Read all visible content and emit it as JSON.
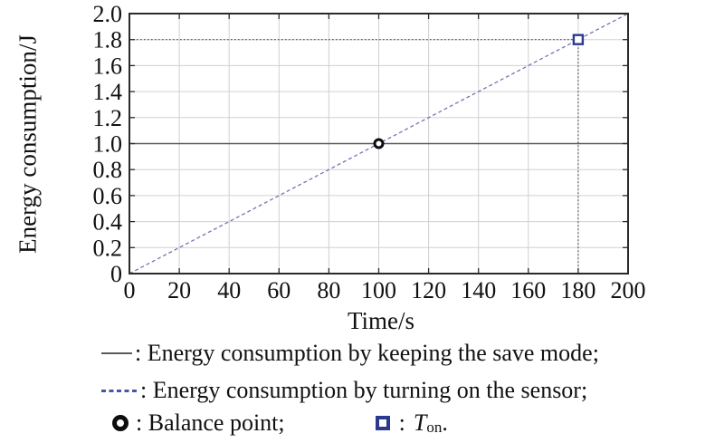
{
  "chart_data": {
    "type": "line",
    "title": "",
    "xlabel": "Time/s",
    "ylabel": "Energy consumption/J",
    "xlim": [
      0,
      200
    ],
    "ylim": [
      0,
      2.0
    ],
    "xticks": [
      "0",
      "20",
      "40",
      "60",
      "80",
      "100",
      "120",
      "140",
      "160",
      "180",
      "200"
    ],
    "yticks": [
      "0",
      "0.2",
      "0.4",
      "0.6",
      "0.8",
      "1.0",
      "1.2",
      "1.4",
      "1.6",
      "1.8",
      "2.0"
    ],
    "grid": true,
    "legend_position": "below",
    "series": [
      {
        "name": "Energy consumption by keeping the save mode",
        "style": "solid",
        "color": "#5a5a5a",
        "points": [
          [
            0,
            1.0
          ],
          [
            200,
            1.0
          ]
        ]
      },
      {
        "name": "Energy consumption by turning on the sensor",
        "style": "dashed",
        "color": "#7474b0",
        "points": [
          [
            0,
            0
          ],
          [
            200,
            2.0
          ]
        ]
      }
    ],
    "guides": [
      {
        "type": "h",
        "y": 1.8,
        "x0": 0,
        "x1": 180,
        "style": "dotted",
        "color": "#4a4a4a"
      },
      {
        "type": "v",
        "x": 180,
        "y0": 0,
        "y1": 1.8,
        "style": "dotted",
        "color": "#4a4a4a"
      }
    ],
    "markers": [
      {
        "name": "Balance point",
        "x": 100,
        "y": 1.0,
        "shape": "circle",
        "color": "#0d0d0d"
      },
      {
        "name": "T_on",
        "x": 180,
        "y": 1.8,
        "shape": "square",
        "color": "#2b3a8f"
      }
    ]
  },
  "legend": {
    "row1_label": ": Energy consumption by keeping the save mode;",
    "row2_label": ": Energy consumption by turning on the sensor;",
    "row3_balance_label": ": Balance point;",
    "row3_ton_colon": ":",
    "row3_ton_main": "T",
    "row3_ton_sub": "on",
    "row3_ton_period": "."
  },
  "colors": {
    "axis": "#2a2a2a",
    "grid": "#d0d0d0",
    "text": "#111111",
    "save_mode_line": "#5a5a5a",
    "sensor_line": "#7474b0",
    "guide_line": "#4a4a4a",
    "balance_marker": "#0d0d0d",
    "ton_marker": "#2b3a8f"
  }
}
